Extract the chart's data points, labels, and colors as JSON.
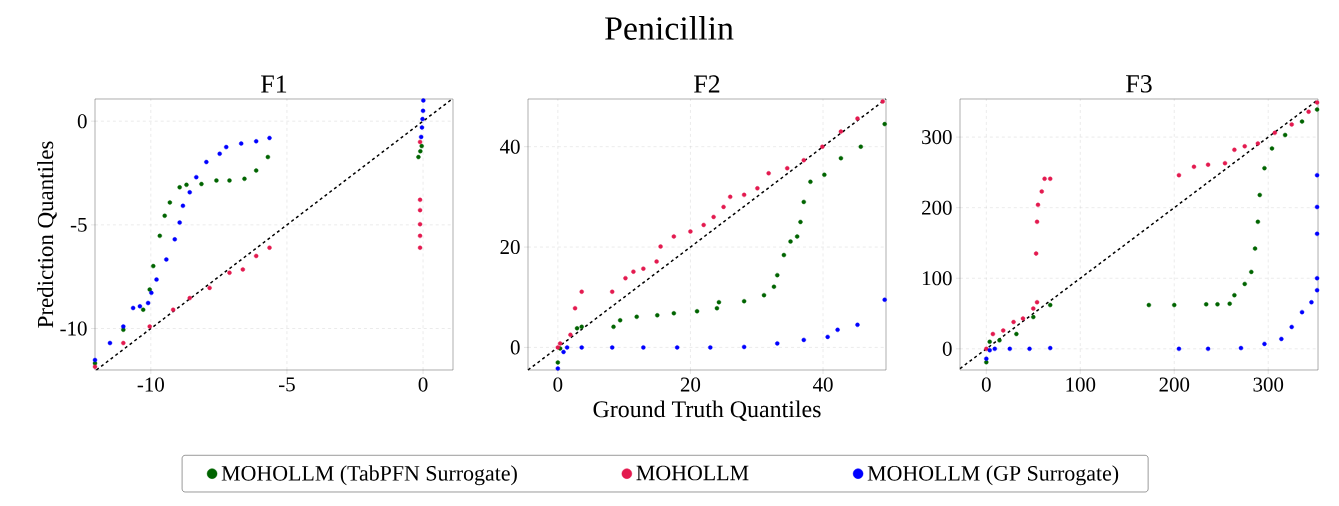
{
  "chart_data": [
    {
      "type": "scatter",
      "title": "F1",
      "ylabel": "Prediction Quantiles",
      "annotations": [
        "Penicillin"
      ],
      "marker": "circle",
      "grid": true,
      "xlim": [
        -12.05,
        1.1
      ],
      "ylim": [
        -12,
        1.07
      ],
      "xticks": [
        -10,
        -5,
        0
      ],
      "yticks": [
        -10,
        -5,
        0
      ],
      "series": [
        {
          "color": "#006400",
          "x": [
            -12.05,
            -11.01,
            -10.28,
            -10.04,
            -9.91,
            -9.67,
            -9.49,
            -9.3,
            -8.94,
            -8.69,
            -8.14,
            -7.59,
            -7.11,
            -6.56,
            -6.13,
            -5.7,
            -0.17,
            -0.1,
            -0.05
          ],
          "values": [
            -11.68,
            -10.06,
            -9.09,
            -8.12,
            -6.99,
            -5.53,
            -4.56,
            -3.92,
            -3.19,
            -3.07,
            -3.03,
            -2.86,
            -2.86,
            -2.78,
            -2.38,
            -1.73,
            -1.73,
            -1.45,
            -1.2
          ]
        },
        {
          "color": "#e31a4f",
          "x": [
            -12.05,
            -11.01,
            -10.04,
            -9.18,
            -8.57,
            -7.84,
            -7.11,
            -6.62,
            -6.13,
            -5.64,
            -0.11,
            -0.11,
            -0.11,
            -0.11,
            -0.11,
            -0.11
          ],
          "values": [
            -11.84,
            -10.7,
            -9.9,
            -9.09,
            -8.53,
            -8.04,
            -7.31,
            -7.15,
            -6.5,
            -6.1,
            -1.0,
            -3.79,
            -4.29,
            -4.97,
            -5.53,
            -6.1
          ]
        },
        {
          "color": "#0000ff",
          "x": [
            -12.05,
            -11.5,
            -11.01,
            -10.65,
            -10.4,
            -10.1,
            -9.98,
            -9.79,
            -9.43,
            -9.12,
            -8.94,
            -8.82,
            -8.57,
            -8.33,
            -7.96,
            -7.47,
            -7.23,
            -6.68,
            -6.13,
            -5.64,
            -0.07,
            -0.04,
            -0.02,
            0,
            0.01
          ],
          "values": [
            -11.52,
            -10.7,
            -9.9,
            -9.01,
            -8.93,
            -8.77,
            -8.28,
            -7.64,
            -6.67,
            -5.7,
            -4.89,
            -4.08,
            -3.43,
            -2.7,
            -1.97,
            -1.57,
            -1.25,
            -1.08,
            -0.97,
            -0.81,
            -0.76,
            -0.3,
            0.1,
            0.5,
            1.0
          ]
        },
        {
          "type": "line",
          "color": "#000000",
          "line_style": "dashed",
          "marker": "none",
          "x": [
            -12,
            1.07
          ],
          "values": [
            -12,
            1.07
          ]
        }
      ]
    },
    {
      "type": "scatter",
      "title": "F2",
      "xlabel": "Ground Truth Quantiles",
      "marker": "circle",
      "grid": true,
      "legend": "bottom",
      "xlim": [
        -4.5,
        49.5
      ],
      "ylim": [
        -4.5,
        49.5
      ],
      "xticks": [
        0,
        20,
        40
      ],
      "yticks": [
        0,
        20,
        40
      ],
      "series": [
        {
          "name": "MOHOLLM (TabPFN Surrogate)",
          "color": "#006400",
          "x": [
            0,
            0.35,
            2.9,
            3.6,
            8.4,
            9.4,
            11.9,
            15.0,
            17.5,
            21.0,
            24.0,
            24.3,
            28.1,
            31.1,
            32.6,
            33.1,
            34.1,
            35.1,
            36.1,
            36.6,
            37.1,
            38.1,
            40.2,
            42.7,
            45.7,
            49.3
          ],
          "values": [
            -3.0,
            -0.2,
            3.8,
            4.1,
            4.1,
            5.4,
            6.1,
            6.4,
            6.8,
            7.2,
            7.8,
            9.0,
            9.2,
            10.4,
            12.1,
            14.4,
            18.4,
            21.1,
            22.1,
            25.0,
            29.0,
            33.0,
            34.4,
            37.7,
            40.0,
            44.5
          ]
        },
        {
          "name": "MOHOLLM",
          "color": "#e31a4f",
          "x": [
            0,
            0.35,
            1.9,
            2.6,
            3.6,
            8.2,
            10.2,
            11.4,
            12.9,
            14.9,
            15.5,
            17.5,
            20.0,
            22.0,
            23.5,
            25.0,
            26.0,
            28.1,
            30.1,
            31.8,
            34.6,
            37.1,
            39.9,
            42.7,
            45.2,
            49.0
          ],
          "values": [
            0,
            0.8,
            2.5,
            7.8,
            11.1,
            11.1,
            13.8,
            15.1,
            15.7,
            17.1,
            20.1,
            22.1,
            23.1,
            24.4,
            26.0,
            28.0,
            30.0,
            30.4,
            31.7,
            34.7,
            35.7,
            37.3,
            40.0,
            43.0,
            45.6,
            49.0
          ]
        },
        {
          "name": "MOHOLLM (GP Surrogate)",
          "color": "#0000ff",
          "x": [
            0,
            0.86,
            1.4,
            3.6,
            8.2,
            12.9,
            18.0,
            23.0,
            28.1,
            33.1,
            37.1,
            40.7,
            42.2,
            45.2,
            49.3
          ],
          "values": [
            -4.2,
            -0.9,
            0,
            0,
            0,
            0,
            0,
            0,
            0.1,
            0.8,
            1.5,
            2.1,
            3.5,
            4.5,
            9.5
          ]
        },
        {
          "type": "line",
          "color": "#000000",
          "line_style": "dashed",
          "marker": "none",
          "x": [
            -4.5,
            49.5
          ],
          "values": [
            -4.5,
            49.5
          ]
        }
      ]
    },
    {
      "type": "scatter",
      "title": "F3",
      "marker": "circle",
      "grid": true,
      "xlim": [
        -28,
        353
      ],
      "ylim": [
        -30,
        354
      ],
      "xticks": [
        0,
        100,
        200,
        300
      ],
      "yticks": [
        0,
        100,
        200,
        300
      ],
      "series": [
        {
          "color": "#006400",
          "x": [
            0,
            3.6,
            14,
            32,
            50,
            68,
            173,
            200,
            234,
            246,
            259,
            264,
            275,
            282,
            286,
            289,
            291,
            296,
            304,
            318,
            336,
            352
          ],
          "values": [
            -19,
            10,
            12,
            21,
            45,
            62,
            62,
            62,
            63,
            63,
            64,
            76,
            92,
            109,
            142,
            180,
            218,
            256,
            284,
            303,
            322,
            339
          ]
        },
        {
          "color": "#e31a4f",
          "x": [
            0,
            7,
            18,
            29,
            39,
            50,
            54,
            53,
            54,
            55,
            59,
            62,
            68,
            205,
            221,
            236,
            254,
            264,
            275,
            289,
            307,
            325,
            343,
            352
          ],
          "values": [
            0,
            21,
            26,
            38,
            43,
            57,
            66,
            135,
            180,
            204,
            223,
            241,
            241,
            246,
            258,
            261,
            263,
            282,
            287,
            291,
            306,
            318,
            336,
            349
          ]
        },
        {
          "color": "#0000ff",
          "x": [
            0,
            3.6,
            9,
            25,
            46,
            68,
            205,
            236,
            271,
            296,
            314,
            325,
            336,
            346,
            352,
            352,
            352,
            352,
            352
          ],
          "values": [
            -14,
            -2,
            0,
            0,
            0,
            1,
            0,
            0,
            1,
            7,
            14,
            31,
            52,
            66,
            83,
            100,
            163,
            201,
            246
          ]
        },
        {
          "type": "line",
          "color": "#000000",
          "line_style": "dashed",
          "marker": "none",
          "x": [
            -28,
            353
          ],
          "values": [
            -28,
            353
          ]
        }
      ]
    }
  ]
}
